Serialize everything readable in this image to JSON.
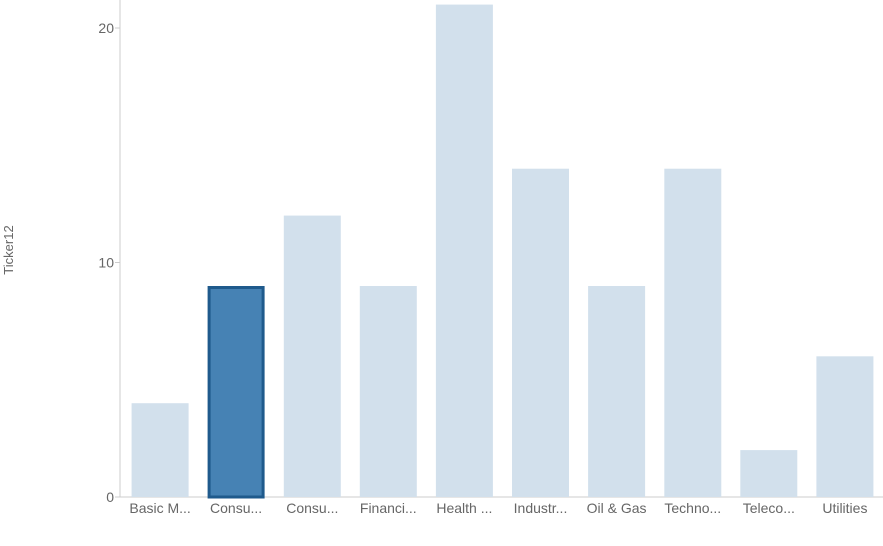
{
  "chart_data": {
    "type": "bar",
    "ylabel": "Ticker12",
    "xlabel": "",
    "categories": [
      "Basic M...",
      "Consu...",
      "Consu...",
      "Financi...",
      "Health ...",
      "Industr...",
      "Oil & Gas",
      "Techno...",
      "Teleco...",
      "Utilities"
    ],
    "values": [
      4,
      9,
      12,
      9,
      21,
      14,
      9,
      14,
      2,
      6
    ],
    "selected_index": 1,
    "y_ticks": [
      0,
      10,
      20
    ],
    "ylim": [
      0,
      21
    ],
    "grid": false,
    "colors": {
      "bar": "#d2e0ec",
      "selected_fill": "#4682b4",
      "selected_stroke": "#1f5a8c",
      "axis": "#cccccc",
      "text": "#666666"
    }
  }
}
